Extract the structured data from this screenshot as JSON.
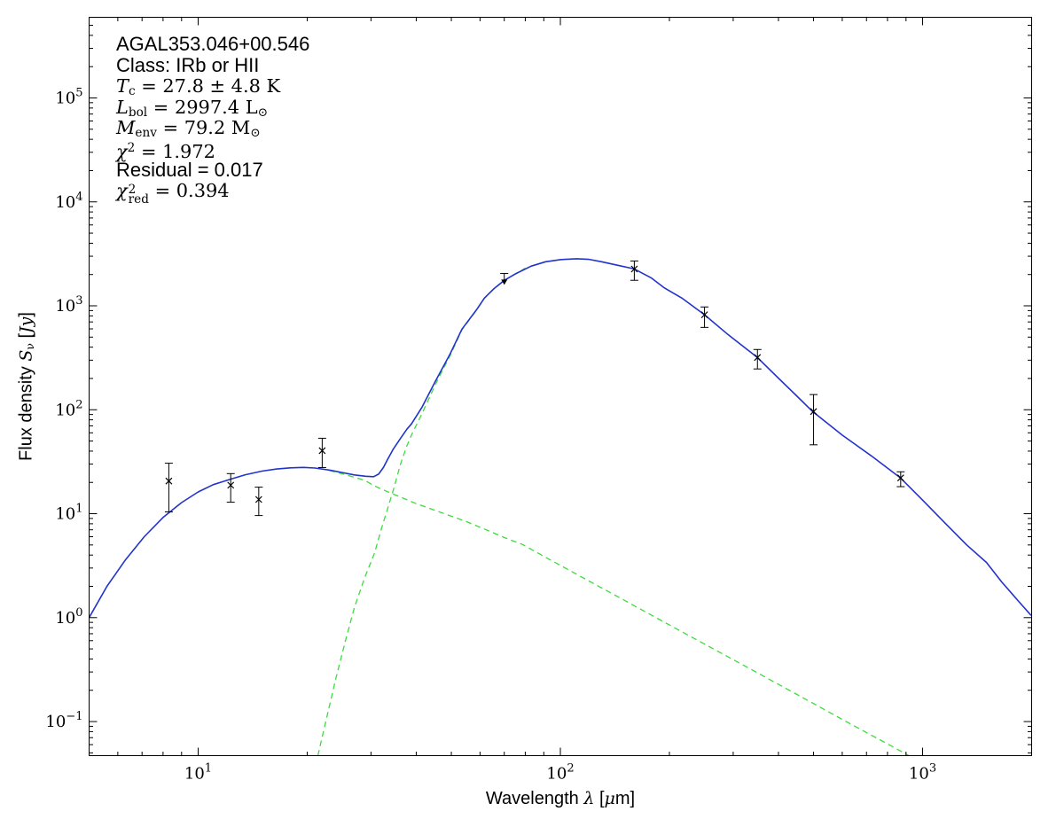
{
  "annotation": {
    "lines": [
      {
        "name": "source-name",
        "segments": [
          {
            "t": "AGAL353.046+00.546",
            "s": "sans"
          }
        ]
      },
      {
        "name": "class",
        "segments": [
          {
            "t": "Class: IRb or HII",
            "s": "sans"
          }
        ]
      },
      {
        "name": "temperature",
        "segments": [
          {
            "t": "T",
            "s": "it"
          },
          {
            "t": "c",
            "s": "sub"
          },
          {
            "t": " = 27.8 ± 4.8 K",
            "s": "rm"
          }
        ]
      },
      {
        "name": "luminosity",
        "segments": [
          {
            "t": "L",
            "s": "it"
          },
          {
            "t": "bol",
            "s": "sub"
          },
          {
            "t": " = 2997.4 L",
            "s": "rm"
          },
          {
            "t": "⊙",
            "s": "sub"
          }
        ]
      },
      {
        "name": "mass",
        "segments": [
          {
            "t": "M",
            "s": "it"
          },
          {
            "t": "env",
            "s": "sub"
          },
          {
            "t": " = 79.2 M",
            "s": "rm"
          },
          {
            "t": "⊙",
            "s": "sub"
          }
        ]
      },
      {
        "name": "chi-squared",
        "segments": [
          {
            "t": "χ",
            "s": "it"
          },
          {
            "t": "2",
            "s": "sup"
          },
          {
            "t": " = 1.972",
            "s": "rm"
          }
        ]
      },
      {
        "name": "residual",
        "segments": [
          {
            "t": "Residual = 0.017",
            "s": "sans"
          }
        ]
      },
      {
        "name": "chi-squared-reduced",
        "segments": [
          {
            "t": "χ",
            "s": "it"
          },
          {
            "s": "stack",
            "sup": "2",
            "sub": "red"
          },
          {
            "t": " = 0.394",
            "s": "rm"
          }
        ]
      }
    ]
  },
  "axes": {
    "x": {
      "segments": [
        {
          "t": "Wavelength ",
          "s": "sans"
        },
        {
          "t": "λ",
          "s": "it"
        },
        {
          "t": " [",
          "s": "sans"
        },
        {
          "t": "μ",
          "s": "it"
        },
        {
          "t": "m]",
          "s": "sans"
        }
      ]
    },
    "y": {
      "segments": [
        {
          "t": "Flux density ",
          "s": "sans"
        },
        {
          "t": "S",
          "s": "it"
        },
        {
          "t": "ν",
          "s": "sub"
        },
        {
          "t": " [",
          "s": "sans"
        },
        {
          "t": "Jy",
          "s": "it"
        },
        {
          "t": "]",
          "s": "sans"
        }
      ]
    }
  },
  "chart_data": {
    "type": "line",
    "title": "",
    "xlabel": "Wavelength λ [μm]",
    "ylabel": "Flux density S_ν [Jy]",
    "xscale": "log",
    "yscale": "log",
    "xlim": [
      5,
      2000
    ],
    "ylim": [
      0.047,
      597000
    ],
    "x_tick_exponents": [
      1,
      2,
      3
    ],
    "y_tick_exponents": [
      5,
      4,
      3,
      2,
      1,
      0,
      -1
    ],
    "grid": false,
    "legend": "none",
    "colors": {
      "model": "#2233cc",
      "components": "#3cdc3c",
      "data": "#000000"
    },
    "series": [
      {
        "name": "cold-component",
        "style": "dashed",
        "color": "#3cdc3c",
        "width": 1.3,
        "points": [
          [
            21.4,
            0.047
          ],
          [
            22.5,
            0.1
          ],
          [
            24,
            0.26
          ],
          [
            25.5,
            0.6
          ],
          [
            27,
            1.25
          ],
          [
            28.8,
            2.4
          ],
          [
            30.7,
            4.2
          ],
          [
            32,
            7
          ],
          [
            33.3,
            11
          ],
          [
            34.6,
            17
          ],
          [
            36.2,
            30
          ],
          [
            37.7,
            45
          ],
          [
            38.8,
            57
          ],
          [
            41.5,
            92
          ],
          [
            45.3,
            178
          ],
          [
            49.6,
            332
          ],
          [
            53.5,
            588
          ],
          [
            58.7,
            910
          ],
          [
            61.7,
            1178
          ],
          [
            65.3,
            1436
          ],
          [
            70,
            1750
          ],
          [
            74.8,
            2005
          ],
          [
            80,
            2300
          ]
        ]
      },
      {
        "name": "warm-component",
        "style": "dashed",
        "color": "#3cdc3c",
        "width": 1.3,
        "points": [
          [
            23,
            26.1
          ],
          [
            24,
            25.1
          ],
          [
            25,
            24.2
          ],
          [
            26,
            23.3
          ],
          [
            27,
            22.4
          ],
          [
            28,
            21.6
          ],
          [
            29,
            20.7
          ],
          [
            30.5,
            18.7
          ],
          [
            32,
            17.3
          ],
          [
            34,
            15.8
          ],
          [
            36.3,
            14.4
          ],
          [
            40,
            12.5
          ],
          [
            44,
            11.1
          ],
          [
            48.2,
            9.9
          ],
          [
            55,
            8.4
          ],
          [
            63,
            6.9
          ],
          [
            70,
            5.9
          ],
          [
            78.6,
            5.05
          ],
          [
            90,
            3.89
          ],
          [
            105,
            2.9
          ],
          [
            120,
            2.25
          ],
          [
            140,
            1.68
          ],
          [
            160,
            1.3
          ],
          [
            200,
            0.85
          ],
          [
            250,
            0.557
          ],
          [
            300,
            0.394
          ],
          [
            350,
            0.294
          ],
          [
            420,
            0.208
          ],
          [
            500,
            0.149
          ],
          [
            600,
            0.105
          ],
          [
            722,
            0.074
          ],
          [
            800,
            0.061
          ],
          [
            917,
            0.047
          ]
        ]
      },
      {
        "name": "total-model",
        "style": "solid",
        "color": "#2233cc",
        "width": 1.6,
        "points": [
          [
            5,
            1.0
          ],
          [
            5.6,
            2.0
          ],
          [
            6.3,
            3.6
          ],
          [
            7.1,
            6.0
          ],
          [
            8,
            9.2
          ],
          [
            9,
            12.8
          ],
          [
            10,
            16.2
          ],
          [
            11,
            19.0
          ],
          [
            12.2,
            21.3
          ],
          [
            13.5,
            23.7
          ],
          [
            15,
            25.7
          ],
          [
            16.5,
            26.9
          ],
          [
            18,
            27.6
          ],
          [
            19.5,
            27.9
          ],
          [
            21,
            27.5
          ],
          [
            23,
            26.3
          ],
          [
            25,
            24.9
          ],
          [
            27,
            23.6
          ],
          [
            29,
            22.9
          ],
          [
            30.5,
            22.7
          ],
          [
            31.5,
            24.0
          ],
          [
            32.5,
            28.0
          ],
          [
            33.3,
            33
          ],
          [
            34.6,
            42
          ],
          [
            36.2,
            53
          ],
          [
            37.7,
            65
          ],
          [
            38.8,
            73
          ],
          [
            41.5,
            106
          ],
          [
            45.3,
            191
          ],
          [
            49.6,
            344
          ],
          [
            53.5,
            597
          ],
          [
            58.7,
            918
          ],
          [
            61.7,
            1186
          ],
          [
            65.3,
            1443
          ],
          [
            70,
            1758
          ],
          [
            74.8,
            2014
          ],
          [
            83,
            2404
          ],
          [
            91,
            2655
          ],
          [
            100,
            2780
          ],
          [
            111,
            2837
          ],
          [
            120,
            2800
          ],
          [
            130,
            2655
          ],
          [
            146,
            2430
          ],
          [
            160,
            2265
          ],
          [
            178,
            1860
          ],
          [
            193,
            1500
          ],
          [
            217,
            1180
          ],
          [
            250,
            820
          ],
          [
            290,
            530
          ],
          [
            350,
            318
          ],
          [
            402,
            198
          ],
          [
            450,
            135
          ],
          [
            497,
            96
          ],
          [
            600,
            57
          ],
          [
            722,
            36
          ],
          [
            870,
            22
          ],
          [
            1000,
            13.5
          ],
          [
            1150,
            8.2
          ],
          [
            1324,
            5.0
          ],
          [
            1500,
            3.4
          ],
          [
            1654,
            2.2
          ],
          [
            1820,
            1.5
          ],
          [
            1993,
            1.05
          ]
        ]
      }
    ],
    "data_points": [
      {
        "lam": 8.3,
        "s": 20.6,
        "lo": 10.4,
        "hi": 30.6
      },
      {
        "lam": 12.3,
        "s": 18.8,
        "lo": 12.9,
        "hi": 24.3
      },
      {
        "lam": 14.7,
        "s": 13.7,
        "lo": 9.6,
        "hi": 18.0
      },
      {
        "lam": 22.0,
        "s": 40.4,
        "lo": 27.8,
        "hi": 53.2
      },
      {
        "lam": 160,
        "s": 2260,
        "lo": 1760,
        "hi": 2700
      },
      {
        "lam": 250,
        "s": 820,
        "lo": 620,
        "hi": 975
      },
      {
        "lam": 350,
        "s": 318,
        "lo": 247,
        "hi": 380
      },
      {
        "lam": 500,
        "s": 96,
        "lo": 46,
        "hi": 140
      },
      {
        "lam": 870,
        "s": 22.1,
        "lo": 18.2,
        "hi": 25.3
      }
    ],
    "upper_limit": {
      "lam": 70,
      "hi": 2050,
      "tip": 1590
    }
  }
}
